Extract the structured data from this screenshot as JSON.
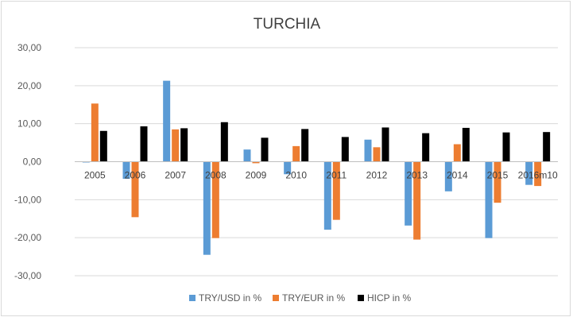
{
  "chart_data": {
    "type": "bar",
    "title": "TURCHIA",
    "xlabel": "",
    "ylabel": "",
    "categories": [
      "2005",
      "2006",
      "2007",
      "2008",
      "2009",
      "2010",
      "2011",
      "2012",
      "2013",
      "2014",
      "2015",
      "2016m10"
    ],
    "series": [
      {
        "name": "TRY/USD in %",
        "color": "#5b9bd5",
        "values": [
          -0.2,
          -4.5,
          21.3,
          -24.5,
          3.2,
          -3.3,
          -17.9,
          5.8,
          -16.8,
          -7.8,
          -20.1,
          -6.1
        ]
      },
      {
        "name": "TRY/EUR in %",
        "color": "#ed7d31",
        "values": [
          15.3,
          -14.6,
          8.5,
          -20.1,
          -0.4,
          4.1,
          -15.3,
          3.8,
          -20.5,
          4.6,
          -10.8,
          -6.4
        ]
      },
      {
        "name": "HICP in %",
        "color": "#000000",
        "values": [
          8.1,
          9.3,
          8.8,
          10.4,
          6.3,
          8.6,
          6.5,
          9.0,
          7.5,
          8.9,
          7.7,
          7.8
        ]
      }
    ],
    "ylim": [
      -30,
      30
    ],
    "yticks": [
      "30,00",
      "20,00",
      "10,00",
      "0,00",
      "-10,00",
      "-20,00",
      "-30,00"
    ],
    "ytick_values": [
      30,
      20,
      10,
      0,
      -10,
      -20,
      -30
    ],
    "grid": true,
    "legend_position": "bottom"
  }
}
